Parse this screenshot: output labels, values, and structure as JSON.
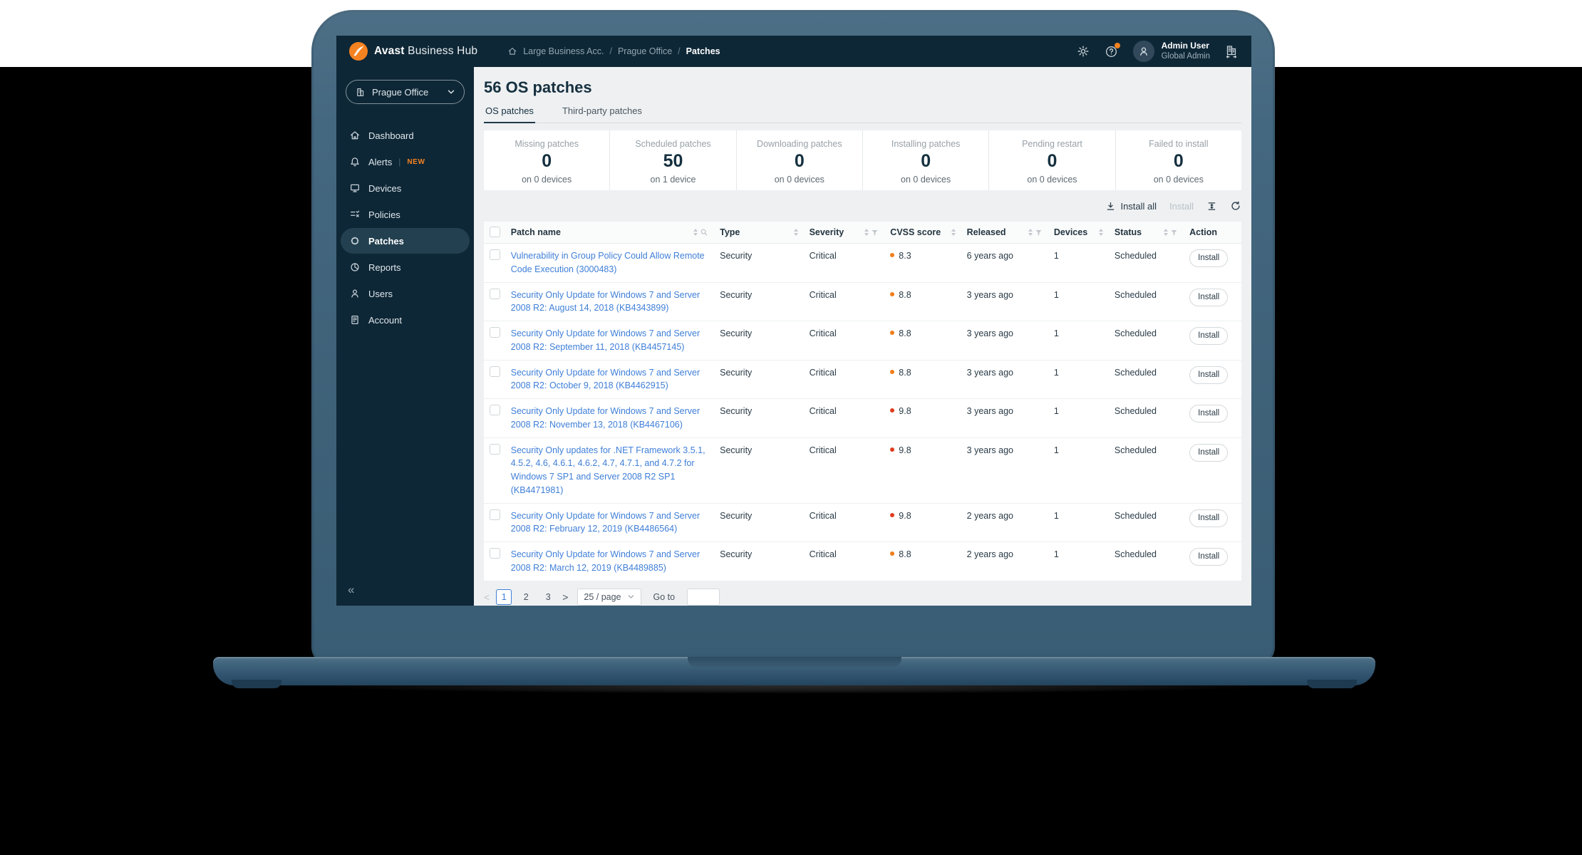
{
  "topbar": {
    "brand_bold": "Avast",
    "brand_light": "Business Hub",
    "breadcrumb": [
      "Large Business Acc.",
      "Prague Office",
      "Patches"
    ],
    "user_name": "Admin User",
    "user_role": "Global Admin"
  },
  "sidebar": {
    "org_selector": "Prague Office",
    "items": [
      {
        "label": "Dashboard",
        "icon": "home",
        "active": false
      },
      {
        "label": "Alerts",
        "icon": "bell",
        "badge": "NEW",
        "active": false
      },
      {
        "label": "Devices",
        "icon": "monitor",
        "active": false
      },
      {
        "label": "Policies",
        "icon": "policies",
        "active": false
      },
      {
        "label": "Patches",
        "icon": "patch",
        "active": true
      },
      {
        "label": "Reports",
        "icon": "pie",
        "active": false
      },
      {
        "label": "Users",
        "icon": "user",
        "active": false
      },
      {
        "label": "Account",
        "icon": "doc",
        "active": false
      }
    ],
    "collapse_glyph": "«"
  },
  "page": {
    "title": "56 OS patches",
    "tabs": [
      {
        "label": "OS patches",
        "active": true
      },
      {
        "label": "Third-party patches",
        "active": false
      }
    ]
  },
  "stats": [
    {
      "label": "Missing patches",
      "value": "0",
      "sub": "on 0 devices"
    },
    {
      "label": "Scheduled patches",
      "value": "50",
      "sub": "on 1 device"
    },
    {
      "label": "Downloading patches",
      "value": "0",
      "sub": "on 0 devices"
    },
    {
      "label": "Installing patches",
      "value": "0",
      "sub": "on 0 devices"
    },
    {
      "label": "Pending restart",
      "value": "0",
      "sub": "on 0 devices"
    },
    {
      "label": "Failed to install",
      "value": "0",
      "sub": "on 0 devices"
    }
  ],
  "toolbar": {
    "install_all": "Install all",
    "install": "Install"
  },
  "table": {
    "columns": [
      {
        "label": "Patch name",
        "sort": true,
        "search": true
      },
      {
        "label": "Type",
        "sort": true
      },
      {
        "label": "Severity",
        "sort": true,
        "filter": true
      },
      {
        "label": "CVSS score",
        "sort": true
      },
      {
        "label": "Released",
        "sort": true,
        "filter": true
      },
      {
        "label": "Devices",
        "sort": true
      },
      {
        "label": "Status",
        "sort": true,
        "filter": true
      },
      {
        "label": "Action"
      }
    ],
    "rows": [
      {
        "name": "Vulnerability in Group Policy Could Allow Remote Code Execution (3000483)",
        "type": "Security",
        "severity": "Critical",
        "cvss": "8.3",
        "dot": "orange",
        "released": "6 years ago",
        "devices": "1",
        "status": "Scheduled",
        "action": "Install"
      },
      {
        "name": "Security Only Update for Windows 7 and Server 2008 R2: August 14, 2018 (KB4343899)",
        "type": "Security",
        "severity": "Critical",
        "cvss": "8.8",
        "dot": "orange",
        "released": "3 years ago",
        "devices": "1",
        "status": "Scheduled",
        "action": "Install"
      },
      {
        "name": "Security Only Update for Windows 7 and Server 2008 R2: September 11, 2018 (KB4457145)",
        "type": "Security",
        "severity": "Critical",
        "cvss": "8.8",
        "dot": "orange",
        "released": "3 years ago",
        "devices": "1",
        "status": "Scheduled",
        "action": "Install"
      },
      {
        "name": "Security Only Update for Windows 7 and Server 2008 R2: October 9, 2018 (KB4462915)",
        "type": "Security",
        "severity": "Critical",
        "cvss": "8.8",
        "dot": "orange",
        "released": "3 years ago",
        "devices": "1",
        "status": "Scheduled",
        "action": "Install"
      },
      {
        "name": "Security Only Update for Windows 7 and Server 2008 R2: November 13, 2018 (KB4467106)",
        "type": "Security",
        "severity": "Critical",
        "cvss": "9.8",
        "dot": "red",
        "released": "3 years ago",
        "devices": "1",
        "status": "Scheduled",
        "action": "Install"
      },
      {
        "name": "Security Only updates for .NET Framework 3.5.1, 4.5.2, 4.6, 4.6.1, 4.6.2, 4.7, 4.7.1, and 4.7.2 for Windows 7 SP1 and Server 2008 R2 SP1 (KB4471981)",
        "type": "Security",
        "severity": "Critical",
        "cvss": "9.8",
        "dot": "red",
        "released": "3 years ago",
        "devices": "1",
        "status": "Scheduled",
        "action": "Install"
      },
      {
        "name": "Security Only Update for Windows 7 and Server 2008 R2: February 12, 2019 (KB4486564)",
        "type": "Security",
        "severity": "Critical",
        "cvss": "9.8",
        "dot": "red",
        "released": "2 years ago",
        "devices": "1",
        "status": "Scheduled",
        "action": "Install"
      },
      {
        "name": "Security Only Update for Windows 7 and Server 2008 R2: March 12, 2019 (KB4489885)",
        "type": "Security",
        "severity": "Critical",
        "cvss": "8.8",
        "dot": "orange",
        "released": "2 years ago",
        "devices": "1",
        "status": "Scheduled",
        "action": "Install"
      }
    ]
  },
  "pagination": {
    "prev_glyph": "<",
    "next_glyph": ">",
    "pages": [
      "1",
      "2",
      "3"
    ],
    "active_page": "1",
    "page_size": "25 / page",
    "goto_label": "Go to"
  },
  "colors": {
    "accent_orange": "#f58220",
    "link_blue": "#3f7fd8",
    "cvss_orange": "#ef7d1a",
    "cvss_red": "#df3c1e",
    "topbar_navy": "#0e2736"
  }
}
